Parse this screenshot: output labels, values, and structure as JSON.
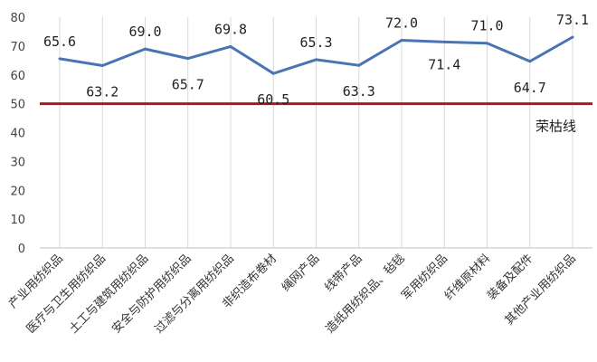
{
  "chart_data": {
    "type": "line",
    "categories": [
      "产业用纺织品",
      "医疗与卫生用纺织品",
      "土工与建筑用纺织品",
      "安全与防护用纺织品",
      "过滤与分离用纺织品",
      "非织造布卷材",
      "绳网产品",
      "线带产品",
      "造纸用纺织品、毡毯",
      "军用纺织品",
      "纤维原材料",
      "装备及配件",
      "其他产业用纺织品"
    ],
    "series": [
      {
        "values": [
          65.6,
          63.2,
          69.0,
          65.7,
          69.8,
          60.5,
          65.3,
          63.3,
          72.0,
          71.4,
          71.0,
          64.7,
          73.1
        ],
        "labels": [
          "65.6",
          "63.2",
          "69.0",
          "65.7",
          "69.8",
          "60.5",
          "65.3",
          "63.3",
          "72.0",
          "71.4",
          "71.0",
          "64.7",
          "73.1"
        ]
      }
    ],
    "reference_line": {
      "value": 50,
      "label": "荣枯线"
    },
    "ylim": [
      0,
      80
    ],
    "yticks": [
      "0",
      "10",
      "20",
      "30",
      "40",
      "50",
      "60",
      "70",
      "80"
    ],
    "grid": "vertical",
    "colors": {
      "series": "#4a74b4",
      "reference": "#b01818",
      "grid": "#d9d9d9"
    }
  }
}
